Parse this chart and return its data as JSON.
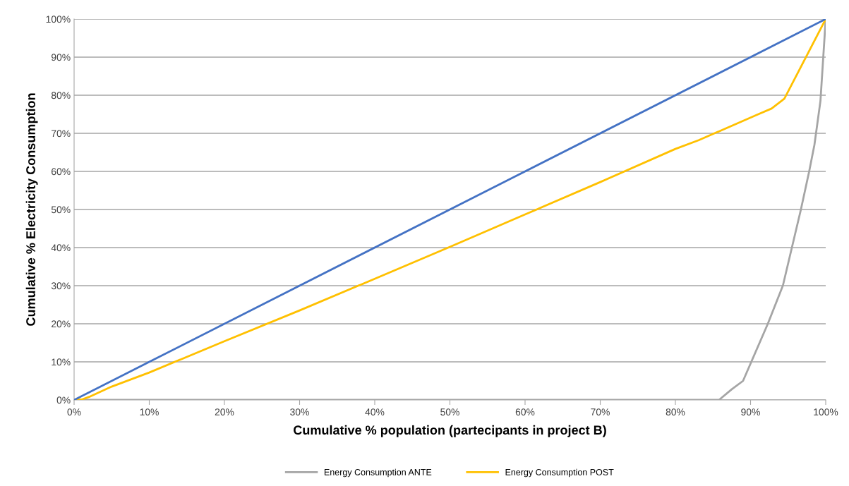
{
  "chart_data": {
    "type": "line",
    "xlabel": "Cumulative % population (partecipants in project B)",
    "ylabel": "Cumulative % Electricity Consumption",
    "xlim": [
      0,
      100
    ],
    "ylim": [
      0,
      100
    ],
    "xticks": [
      {
        "value": 0,
        "label": "0%"
      },
      {
        "value": 10,
        "label": "10%"
      },
      {
        "value": 20,
        "label": "20%"
      },
      {
        "value": 30,
        "label": "30%"
      },
      {
        "value": 40,
        "label": "40%"
      },
      {
        "value": 50,
        "label": "50%"
      },
      {
        "value": 60,
        "label": "60%"
      },
      {
        "value": 70,
        "label": "70%"
      },
      {
        "value": 80,
        "label": "80%"
      },
      {
        "value": 90,
        "label": "90%"
      },
      {
        "value": 100,
        "label": "100%"
      }
    ],
    "yticks": [
      {
        "value": 0,
        "label": "0%"
      },
      {
        "value": 10,
        "label": "10%"
      },
      {
        "value": 20,
        "label": "20%"
      },
      {
        "value": 30,
        "label": "30%"
      },
      {
        "value": 40,
        "label": "40%"
      },
      {
        "value": 50,
        "label": "50%"
      },
      {
        "value": 60,
        "label": "60%"
      },
      {
        "value": 70,
        "label": "70%"
      },
      {
        "value": 80,
        "label": "80%"
      },
      {
        "value": 90,
        "label": "90%"
      },
      {
        "value": 100,
        "label": "100%"
      }
    ],
    "grid": "y",
    "legend": "bottom",
    "marker": "none",
    "line_style": "solid",
    "series": [
      {
        "name": "Energy Consumption ANTE",
        "color": "#a5a5a5",
        "x": [
          0,
          85.8,
          87.5,
          89.0,
          90.1,
          92.3,
          94.3,
          95.5,
          96.7,
          97.8,
          98.5,
          99.3,
          100
        ],
        "values": [
          0,
          0,
          2.8,
          5,
          10,
          20,
          30,
          40,
          50,
          60,
          67,
          78.5,
          100
        ]
      },
      {
        "name": "Energy Consumption POST",
        "color": "#ffc000",
        "x": [
          0,
          1,
          2,
          5,
          10,
          20,
          30,
          40,
          50,
          60,
          70,
          80,
          83.1,
          90.8,
          92.8,
          94.5,
          96.5,
          100
        ],
        "values": [
          0,
          0.1,
          0.8,
          3.5,
          7.2,
          15.4,
          23.5,
          31.8,
          40.2,
          48.7,
          57.2,
          65.9,
          68.2,
          74.8,
          76.5,
          79.1,
          86.7,
          100
        ]
      },
      {
        "color": "#4472c4",
        "x": [
          0,
          100
        ],
        "values": [
          0,
          100
        ]
      }
    ]
  }
}
